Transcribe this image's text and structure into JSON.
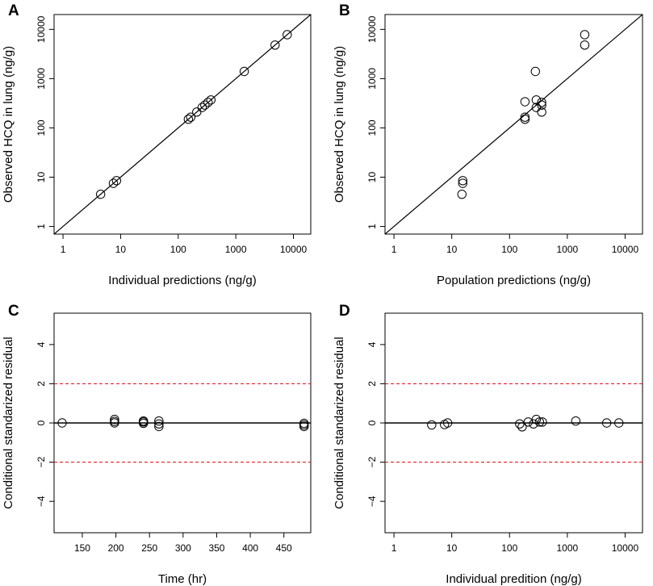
{
  "chart_data": [
    {
      "panel": "A",
      "type": "scatter",
      "xscale": "log",
      "yscale": "log",
      "xlim": [
        0.7,
        20000
      ],
      "ylim": [
        0.7,
        20000
      ],
      "xlabel": "Individual predictions (ng/g)",
      "ylabel": "Observed HCQ in lung (ng/g)",
      "xticks": [
        1,
        10,
        100,
        1000,
        10000
      ],
      "xticklabels": [
        "1",
        "10",
        "100",
        "1000",
        "10000"
      ],
      "yticks": [
        1,
        10,
        100,
        1000,
        10000
      ],
      "yticklabels": [
        "1",
        "10",
        "100",
        "1000",
        "10000"
      ],
      "reference": "identity line y = x",
      "points": [
        {
          "x": 4.5,
          "y": 4.5
        },
        {
          "x": 7.5,
          "y": 7.5
        },
        {
          "x": 8.5,
          "y": 8.5
        },
        {
          "x": 150,
          "y": 150
        },
        {
          "x": 165,
          "y": 165
        },
        {
          "x": 210,
          "y": 210
        },
        {
          "x": 260,
          "y": 260
        },
        {
          "x": 290,
          "y": 290
        },
        {
          "x": 330,
          "y": 330
        },
        {
          "x": 370,
          "y": 370
        },
        {
          "x": 1400,
          "y": 1400
        },
        {
          "x": 4800,
          "y": 4800
        },
        {
          "x": 7800,
          "y": 7800
        }
      ]
    },
    {
      "panel": "B",
      "type": "scatter",
      "xscale": "log",
      "yscale": "log",
      "xlim": [
        0.7,
        20000
      ],
      "ylim": [
        0.7,
        20000
      ],
      "xlabel": "Population predictions (ng/g)",
      "ylabel": "Observed HCQ in lung (ng/g)",
      "xticks": [
        1,
        10,
        100,
        1000,
        10000
      ],
      "xticklabels": [
        "1",
        "10",
        "100",
        "1000",
        "10000"
      ],
      "yticks": [
        1,
        10,
        100,
        1000,
        10000
      ],
      "yticklabels": [
        "1",
        "10",
        "100",
        "1000",
        "10000"
      ],
      "reference": "identity line y = x",
      "points": [
        {
          "x": 15,
          "y": 4.5
        },
        {
          "x": 15.5,
          "y": 7.5
        },
        {
          "x": 15.5,
          "y": 8.5
        },
        {
          "x": 185,
          "y": 150
        },
        {
          "x": 185,
          "y": 165
        },
        {
          "x": 185,
          "y": 340
        },
        {
          "x": 280,
          "y": 1400
        },
        {
          "x": 290,
          "y": 260
        },
        {
          "x": 290,
          "y": 370
        },
        {
          "x": 360,
          "y": 210
        },
        {
          "x": 360,
          "y": 290
        },
        {
          "x": 360,
          "y": 330
        },
        {
          "x": 2000,
          "y": 4800
        },
        {
          "x": 2000,
          "y": 7800
        }
      ]
    },
    {
      "panel": "C",
      "type": "scatter",
      "xscale": "linear",
      "yscale": "linear",
      "xlim": [
        108,
        490
      ],
      "ylim": [
        -5.6,
        5.6
      ],
      "xlabel": "Time (hr)",
      "ylabel": "Conditional standarized residual",
      "xticks": [
        150,
        200,
        250,
        300,
        350,
        400,
        450
      ],
      "xticklabels": [
        "150",
        "200",
        "250",
        "300",
        "350",
        "400",
        "450"
      ],
      "yticks": [
        -4,
        -2,
        0,
        2,
        4
      ],
      "yticklabels": [
        "−4",
        "−2",
        "0",
        "2",
        "4"
      ],
      "hlines": [
        {
          "y": 0,
          "color": "#000000",
          "style": "solid"
        },
        {
          "y": 2,
          "color": "#e0202a",
          "style": "dashed"
        },
        {
          "y": -2,
          "color": "#e0202a",
          "style": "dashed"
        }
      ],
      "points": [
        {
          "x": 120,
          "y": 0.0
        },
        {
          "x": 198,
          "y": 0.18
        },
        {
          "x": 198,
          "y": 0.08
        },
        {
          "x": 198,
          "y": 0.0
        },
        {
          "x": 241,
          "y": 0.1
        },
        {
          "x": 241,
          "y": 0.05
        },
        {
          "x": 241,
          "y": -0.02
        },
        {
          "x": 264,
          "y": 0.1
        },
        {
          "x": 264,
          "y": -0.05
        },
        {
          "x": 264,
          "y": -0.18
        },
        {
          "x": 480,
          "y": -0.02
        },
        {
          "x": 480,
          "y": -0.1
        },
        {
          "x": 480,
          "y": -0.18
        }
      ]
    },
    {
      "panel": "D",
      "type": "scatter",
      "xscale": "log",
      "yscale": "linear",
      "xlim": [
        0.7,
        20000
      ],
      "ylim": [
        -5.6,
        5.6
      ],
      "xlabel": "Individual predition (ng/g)",
      "ylabel": "Conditional standarized residual",
      "xticks": [
        1,
        10,
        100,
        1000,
        10000
      ],
      "xticklabels": [
        "1",
        "10",
        "100",
        "1000",
        "10000"
      ],
      "yticks": [
        -4,
        -2,
        0,
        2,
        4
      ],
      "yticklabels": [
        "−4",
        "−2",
        "0",
        "2",
        "4"
      ],
      "hlines": [
        {
          "y": 0,
          "color": "#000000",
          "style": "solid"
        },
        {
          "y": 2,
          "color": "#e0202a",
          "style": "dashed"
        },
        {
          "y": -2,
          "color": "#e0202a",
          "style": "dashed"
        }
      ],
      "points": [
        {
          "x": 4.5,
          "y": -0.1
        },
        {
          "x": 7.5,
          "y": -0.08
        },
        {
          "x": 8.5,
          "y": 0.0
        },
        {
          "x": 150,
          "y": -0.05
        },
        {
          "x": 165,
          "y": -0.2
        },
        {
          "x": 210,
          "y": 0.05
        },
        {
          "x": 260,
          "y": -0.05
        },
        {
          "x": 290,
          "y": 0.18
        },
        {
          "x": 330,
          "y": 0.05
        },
        {
          "x": 370,
          "y": 0.05
        },
        {
          "x": 1400,
          "y": 0.1
        },
        {
          "x": 4800,
          "y": 0.0
        },
        {
          "x": 7800,
          "y": 0.0
        }
      ]
    }
  ]
}
